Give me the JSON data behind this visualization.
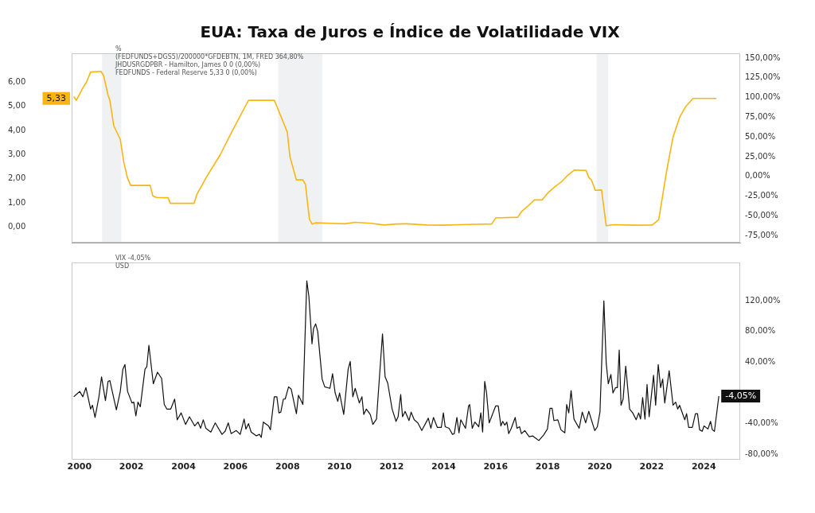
{
  "chart_data": [
    {
      "type": "line",
      "title": "EUA: Taxa de Juros e Índice de Volatilidade VIX",
      "tick_labels": "y",
      "annotations": [
        "%",
        "(FEDFUNDS+DGS5)/200000*GFDEBTN, 1M, FRED 364,80%",
        "JHDUSRGDPBR - Hamilton, James 0 0 (0,00%)",
        "FEDFUNDS - Federal Reserve 5,33 0 (0,00%)",
        {
          "text": "5,33",
          "x": 1999.7,
          "y": 5.33
        }
      ],
      "xlim": [
        1999.7,
        2025.4
      ],
      "xticks": [
        2000,
        2002,
        2004,
        2006,
        2008,
        2010,
        2012,
        2014,
        2016,
        2018,
        2020,
        2022,
        2024
      ],
      "ylim": [
        -0.65,
        7.2
      ],
      "yticks": [
        {
          "value": 0,
          "label": "0,00"
        },
        {
          "value": 1,
          "label": "1,00"
        },
        {
          "value": 2,
          "label": "2,00"
        },
        {
          "value": 3,
          "label": "3,00"
        },
        {
          "value": 4,
          "label": "4,00"
        },
        {
          "value": 5,
          "label": "5,00"
        },
        {
          "value": 6,
          "label": "6,00"
        }
      ],
      "y2lim": [
        -84,
        156
      ],
      "y2ticks": [
        {
          "value": -75,
          "label": "-75,00%"
        },
        {
          "value": -50,
          "label": "-50,00%"
        },
        {
          "value": -25,
          "label": "-25,00%"
        },
        {
          "value": 0,
          "label": "0,00%"
        },
        {
          "value": 25,
          "label": "25,00%"
        },
        {
          "value": 50,
          "label": "50,00%"
        },
        {
          "value": 75,
          "label": "75,00%"
        },
        {
          "value": 100,
          "label": "100,00%"
        },
        {
          "value": 125,
          "label": "125,00%"
        },
        {
          "value": 150,
          "label": "150,00%"
        }
      ],
      "bands": [
        {
          "axis": "x",
          "from": 2000.87,
          "to": 2001.61,
          "color": "#f0f1f2"
        },
        {
          "axis": "x",
          "from": 2007.64,
          "to": 2009.34,
          "color": "#f0f1f2"
        },
        {
          "axis": "x",
          "from": 2019.88,
          "to": 2020.33,
          "color": "#f0f1f2"
        }
      ],
      "series": [
        {
          "color": "#f9b512",
          "x": [
            1999.78,
            1999.88,
            2000.13,
            2000.28,
            2000.43,
            2000.83,
            2000.93,
            2001.1,
            2001.17,
            2001.32,
            2001.57,
            2001.7,
            2001.84,
            2001.97,
            2002.72,
            2002.82,
            2002.96,
            2003.41,
            2003.49,
            2004.41,
            2004.51,
            2004.9,
            2005.4,
            2005.9,
            2006.3,
            2006.5,
            2007.49,
            2007.59,
            2007.99,
            2008.09,
            2008.34,
            2008.59,
            2008.69,
            2008.84,
            2008.94,
            2009.08,
            2009.6,
            2010.2,
            2010.6,
            2011.2,
            2011.7,
            2012.2,
            2012.57,
            2013.36,
            2014.0,
            2014.86,
            2015.85,
            2016.0,
            2016.85,
            2016.99,
            2017.24,
            2017.49,
            2017.79,
            2017.99,
            2018.29,
            2018.54,
            2018.79,
            2019.03,
            2019.48,
            2019.58,
            2019.68,
            2019.83,
            2020.07,
            2020.25,
            2020.53,
            2021.3,
            2022.02,
            2022.27,
            2022.57,
            2022.82,
            2023.07,
            2023.31,
            2023.59,
            2024.49
          ],
          "values": [
            5.41,
            5.25,
            5.76,
            6.02,
            6.42,
            6.45,
            6.27,
            5.46,
            5.25,
            4.19,
            3.63,
            2.71,
            2.05,
            1.72,
            1.72,
            1.29,
            1.22,
            1.21,
            0.98,
            0.98,
            1.34,
            2.1,
            2.97,
            4.03,
            4.85,
            5.25,
            5.25,
            5.0,
            3.93,
            2.92,
            1.95,
            1.95,
            1.75,
            0.33,
            0.12,
            0.17,
            0.15,
            0.13,
            0.19,
            0.15,
            0.08,
            0.12,
            0.13,
            0.08,
            0.07,
            0.1,
            0.12,
            0.37,
            0.4,
            0.63,
            0.86,
            1.12,
            1.12,
            1.39,
            1.68,
            1.88,
            2.16,
            2.36,
            2.34,
            2.05,
            1.95,
            1.52,
            1.53,
            0.05,
            0.09,
            0.07,
            0.08,
            0.3,
            2.31,
            3.73,
            4.54,
            5.0,
            5.33,
            5.33
          ]
        }
      ]
    },
    {
      "type": "line",
      "annotations": [
        "VIX -4,05%",
        "USD"
      ],
      "xlim": [
        1999.7,
        2025.4
      ],
      "xticks": [
        2000,
        2002,
        2004,
        2006,
        2008,
        2010,
        2012,
        2014,
        2016,
        2018,
        2020,
        2022,
        2024
      ],
      "y2lim": [
        -87,
        170
      ],
      "y2ticks": [
        {
          "value": -80,
          "label": "-80,00%"
        },
        {
          "value": -40,
          "label": "-40,00%"
        },
        {
          "value": 40,
          "label": "40,00%"
        },
        {
          "value": 80,
          "label": "80,00%"
        },
        {
          "value": 120,
          "label": "120,00%"
        }
      ],
      "series": [
        {
          "color": "#111111",
          "axis": "y2",
          "x": [
            1999.78,
            1999.88,
            2000.01,
            2000.13,
            2000.25,
            2000.43,
            2000.5,
            2000.6,
            2000.75,
            2000.85,
            2001.0,
            2001.1,
            2001.17,
            2001.42,
            2001.57,
            2001.67,
            2001.75,
            2001.85,
            2002.02,
            2002.09,
            2002.17,
            2002.25,
            2002.34,
            2002.52,
            2002.59,
            2002.67,
            2002.84,
            2003.0,
            2003.16,
            2003.26,
            2003.36,
            2003.51,
            2003.66,
            2003.76,
            2003.91,
            2004.08,
            2004.23,
            2004.43,
            2004.56,
            2004.66,
            2004.76,
            2004.86,
            2005.05,
            2005.22,
            2005.48,
            2005.6,
            2005.72,
            2005.83,
            2006.03,
            2006.18,
            2006.33,
            2006.4,
            2006.5,
            2006.6,
            2006.8,
            2006.92,
            2006.99,
            2007.07,
            2007.27,
            2007.34,
            2007.49,
            2007.59,
            2007.67,
            2007.74,
            2007.84,
            2007.91,
            2008.04,
            2008.14,
            2008.34,
            2008.42,
            2008.59,
            2008.74,
            2008.82,
            2008.94,
            2009.0,
            2009.08,
            2009.16,
            2009.33,
            2009.43,
            2009.63,
            2009.73,
            2009.83,
            2009.93,
            2010.0,
            2010.16,
            2010.33,
            2010.41,
            2010.51,
            2010.6,
            2010.76,
            2010.86,
            2010.93,
            2011.03,
            2011.18,
            2011.28,
            2011.42,
            2011.65,
            2011.75,
            2011.85,
            2012.02,
            2012.17,
            2012.25,
            2012.35,
            2012.42,
            2012.52,
            2012.67,
            2012.75,
            2012.87,
            2013.01,
            2013.16,
            2013.41,
            2013.51,
            2013.61,
            2013.76,
            2013.91,
            2013.99,
            2014.06,
            2014.21,
            2014.34,
            2014.41,
            2014.51,
            2014.59,
            2014.66,
            2014.84,
            2014.96,
            2015.0,
            2015.1,
            2015.2,
            2015.35,
            2015.43,
            2015.5,
            2015.58,
            2015.65,
            2015.75,
            2016.0,
            2016.1,
            2016.2,
            2016.27,
            2016.35,
            2016.43,
            2016.5,
            2016.6,
            2016.75,
            2016.82,
            2016.92,
            2016.99,
            2017.12,
            2017.29,
            2017.42,
            2017.54,
            2017.66,
            2017.84,
            2017.99,
            2018.09,
            2018.17,
            2018.24,
            2018.39,
            2018.51,
            2018.66,
            2018.73,
            2018.81,
            2018.9,
            2019.01,
            2019.21,
            2019.33,
            2019.46,
            2019.58,
            2019.81,
            2019.91,
            2020.01,
            2020.16,
            2020.25,
            2020.33,
            2020.43,
            2020.51,
            2020.61,
            2020.68,
            2020.75,
            2020.82,
            2020.9,
            2021.0,
            2021.15,
            2021.27,
            2021.4,
            2021.5,
            2021.57,
            2021.65,
            2021.74,
            2021.82,
            2021.9,
            2022.07,
            2022.15,
            2022.25,
            2022.34,
            2022.42,
            2022.5,
            2022.67,
            2022.82,
            2022.92,
            2023.0,
            2023.07,
            2023.27,
            2023.34,
            2023.42,
            2023.56,
            2023.68,
            2023.76,
            2023.84,
            2023.94,
            2024.01,
            2024.16,
            2024.26,
            2024.33,
            2024.41,
            2024.58
          ],
          "values": [
            -5,
            -2,
            2,
            -5,
            7,
            -21,
            -16,
            -32,
            -5,
            21,
            -10,
            15,
            16,
            -22,
            2,
            31,
            37,
            2,
            -13,
            -12,
            -30,
            -12,
            -18,
            31,
            34,
            62,
            12,
            27,
            19,
            -15,
            -21,
            -21,
            -8,
            -35,
            -26,
            -41,
            -31,
            -43,
            -38,
            -46,
            -35,
            -46,
            -51,
            -39,
            -54,
            -50,
            -39,
            -53,
            -49,
            -54,
            -34,
            -47,
            -40,
            -51,
            -56,
            -54,
            -58,
            -38,
            -43,
            -48,
            -5,
            -5,
            -26,
            -25,
            -8,
            -8,
            8,
            5,
            -27,
            -3,
            -15,
            146,
            126,
            64,
            84,
            90,
            80,
            18,
            8,
            6,
            25,
            0,
            -11,
            0,
            -28,
            31,
            41,
            -5,
            6,
            -13,
            -5,
            -28,
            -21,
            -28,
            -41,
            -34,
            77,
            21,
            13,
            -21,
            -37,
            -31,
            -2,
            -31,
            -24,
            -36,
            -25,
            -35,
            -39,
            -49,
            -33,
            -46,
            -32,
            -45,
            -45,
            -26,
            -44,
            -46,
            -54,
            -53,
            -32,
            -52,
            -35,
            -46,
            -17,
            -15,
            -46,
            -38,
            -44,
            -26,
            -51,
            15,
            0,
            -39,
            -17,
            -17,
            -43,
            -37,
            -42,
            -38,
            -53,
            -46,
            -32,
            -46,
            -44,
            -53,
            -49,
            -57,
            -56,
            -59,
            -62,
            -55,
            -47,
            -20,
            -20,
            -36,
            -35,
            -48,
            -52,
            -15,
            -26,
            3,
            -34,
            -46,
            -25,
            -39,
            -24,
            -49,
            -44,
            -25,
            120,
            39,
            12,
            24,
            0,
            7,
            7,
            56,
            -16,
            -8,
            35,
            -21,
            -26,
            -35,
            -26,
            -34,
            -6,
            -34,
            11,
            -31,
            23,
            -16,
            37,
            7,
            18,
            -13,
            29,
            -16,
            -12,
            -21,
            -16,
            -35,
            -27,
            -45,
            -45,
            -27,
            -27,
            -48,
            -50,
            -43,
            -47,
            -37,
            -48,
            -50,
            -4.05
          ],
          "value_labels": [
            null,
            null,
            null,
            null,
            null,
            null,
            null,
            null,
            null,
            null,
            null,
            null,
            null,
            null,
            null,
            null,
            null,
            null,
            null,
            null,
            null,
            null,
            null,
            null,
            null,
            null,
            null,
            null,
            null,
            null,
            null,
            null,
            null,
            null,
            null,
            null,
            null,
            null,
            null,
            null,
            null,
            null,
            null,
            null,
            null,
            null,
            null,
            null,
            null,
            null,
            null,
            null,
            null,
            null,
            null,
            null,
            null,
            null,
            null,
            null,
            null,
            null,
            null,
            null,
            null,
            null,
            null,
            null,
            null,
            null,
            null,
            null,
            null,
            null,
            null,
            null,
            null,
            null,
            null,
            null,
            null,
            null,
            null,
            null,
            null,
            null,
            null,
            null,
            null,
            null,
            null,
            null,
            null,
            null,
            null,
            null,
            null,
            null,
            null,
            null,
            null,
            null,
            null,
            null,
            null,
            null,
            null,
            null,
            null,
            null,
            null,
            null,
            null,
            null,
            null,
            null,
            null,
            null,
            null,
            null,
            null,
            null,
            null,
            null,
            null,
            null,
            null,
            null,
            null,
            null,
            null,
            null,
            null,
            null,
            null,
            null,
            null,
            null,
            null,
            null,
            null,
            null,
            null,
            null,
            null,
            null,
            null,
            null,
            null,
            null,
            null,
            null,
            null,
            null,
            null,
            null,
            null,
            null,
            null,
            null,
            null,
            null,
            null,
            null,
            null,
            null,
            null,
            null,
            null,
            null,
            null,
            null,
            null,
            null,
            null,
            null,
            null,
            null,
            null,
            null,
            null,
            null,
            null,
            null,
            null,
            null,
            null,
            null,
            null,
            null,
            null,
            null,
            null,
            null,
            null,
            null,
            null,
            null,
            null,
            null,
            null,
            null,
            null,
            null,
            null,
            null,
            null,
            null,
            null,
            null,
            null,
            null,
            null,
            null,
            "-4,05%"
          ]
        }
      ]
    }
  ]
}
